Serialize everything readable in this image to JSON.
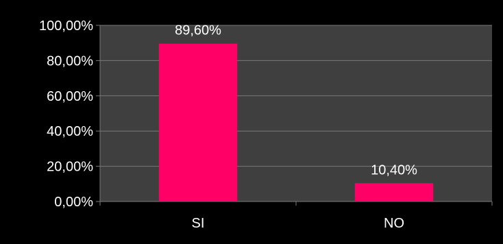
{
  "chart_data": {
    "type": "bar",
    "categories": [
      "SI",
      "NO"
    ],
    "values": [
      89.6,
      10.4
    ],
    "value_labels": [
      "89,60%",
      "10,40%"
    ],
    "ytick_values": [
      0,
      20,
      40,
      60,
      80,
      100
    ],
    "ytick_labels": [
      "0,00%",
      "20,00%",
      "40,00%",
      "60,00%",
      "80,00%",
      "100,00%"
    ],
    "ylim": [
      0,
      100
    ],
    "grid": true,
    "legend": "none",
    "colors": {
      "background": "#000000",
      "plot_background": "#3f3f3f",
      "bar": "#ff0066",
      "grid": "#7a7a7a",
      "text": "#ffffff"
    }
  }
}
